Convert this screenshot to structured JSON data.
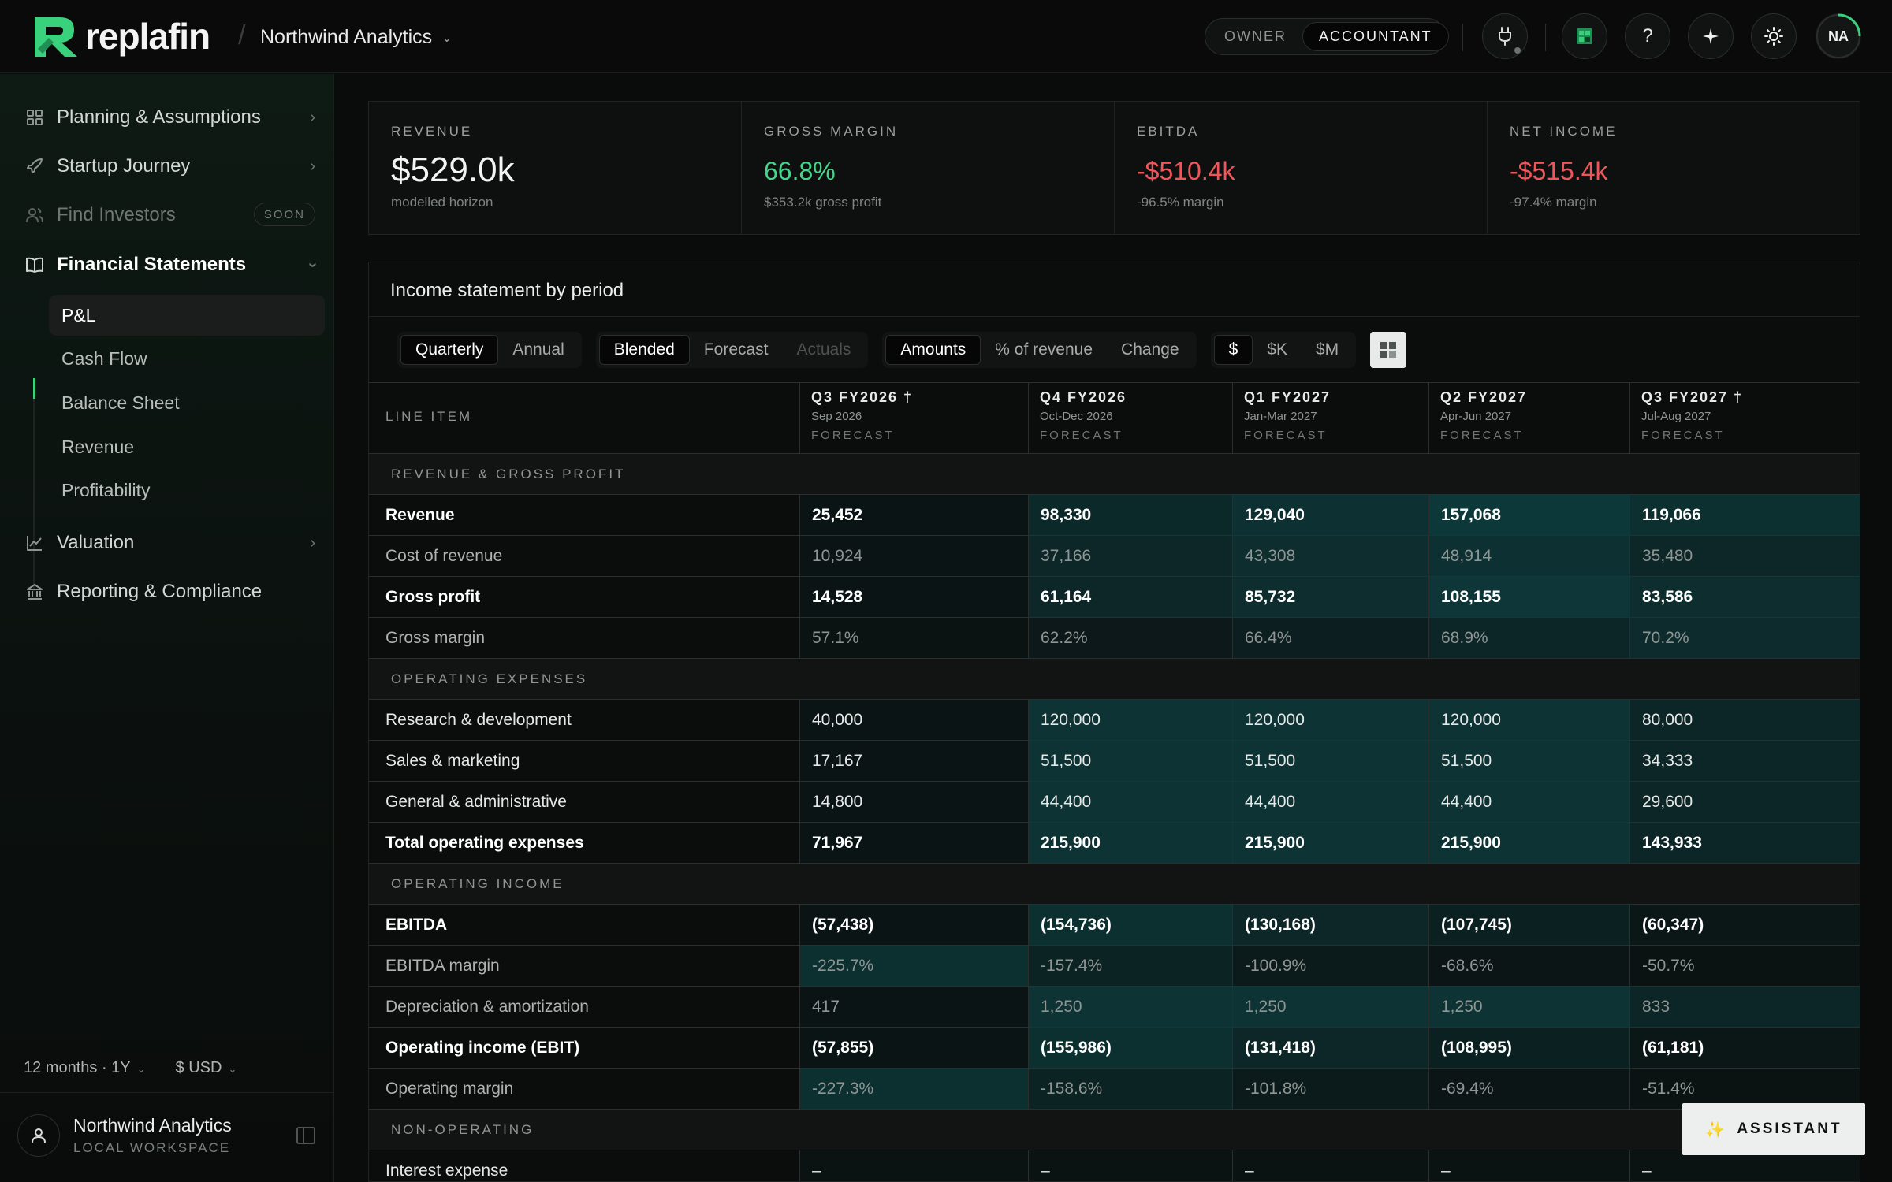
{
  "header": {
    "brand": "replafin",
    "org_name": "Northwind Analytics",
    "roles": [
      "OWNER",
      "ACCOUNTANT"
    ],
    "active_role": "ACCOUNTANT",
    "help_label": "?",
    "avatar_initials": "NA"
  },
  "sidebar": {
    "items": [
      {
        "label": "Planning & Assumptions",
        "icon": "grid-icon"
      },
      {
        "label": "Startup Journey",
        "icon": "rocket-icon"
      },
      {
        "label": "Find Investors",
        "icon": "users-icon",
        "badge": "SOON"
      },
      {
        "label": "Financial Statements",
        "icon": "book-icon"
      },
      {
        "label": "Valuation",
        "icon": "chart-line-icon"
      },
      {
        "label": "Reporting & Compliance",
        "icon": "bank-icon"
      }
    ],
    "sub_items": [
      "P&L",
      "Cash Flow",
      "Balance Sheet",
      "Revenue",
      "Profitability"
    ],
    "active_sub": "P&L",
    "horizon": "12 months · 1Y",
    "currency": "$ USD",
    "workspace_name": "Northwind Analytics",
    "workspace_sub": "LOCAL WORKSPACE"
  },
  "kpis": [
    {
      "label": "REVENUE",
      "value": "$529.0k",
      "sub": "modelled horizon",
      "tone": "neutral"
    },
    {
      "label": "GROSS MARGIN",
      "value": "66.8%",
      "sub": "$353.2k gross profit",
      "tone": "positive"
    },
    {
      "label": "EBITDA",
      "value": "-$510.4k",
      "sub": "-96.5% margin",
      "tone": "negative"
    },
    {
      "label": "NET INCOME",
      "value": "-$515.4k",
      "sub": "-97.4% margin",
      "tone": "negative"
    }
  ],
  "panel": {
    "title": "Income statement by period",
    "period_toggle": [
      "Quarterly",
      "Annual"
    ],
    "period_active": "Quarterly",
    "basis_toggle": [
      "Blended",
      "Forecast",
      "Actuals"
    ],
    "basis_active": "Blended",
    "view_toggle": [
      "Amounts",
      "% of revenue",
      "Change"
    ],
    "view_active": "Amounts",
    "unit_toggle": [
      "$",
      "$K",
      "$M"
    ],
    "unit_active": "$"
  },
  "table": {
    "line_item_header": "LINE ITEM",
    "columns": [
      {
        "period": "Q3 FY2026 †",
        "dates": "Sep 2026",
        "kind": "FORECAST"
      },
      {
        "period": "Q4 FY2026",
        "dates": "Oct-Dec 2026",
        "kind": "FORECAST"
      },
      {
        "period": "Q1 FY2027",
        "dates": "Jan-Mar 2027",
        "kind": "FORECAST"
      },
      {
        "period": "Q2 FY2027",
        "dates": "Apr-Jun 2027",
        "kind": "FORECAST"
      },
      {
        "period": "Q3 FY2027 †",
        "dates": "Jul-Aug 2027",
        "kind": "FORECAST"
      }
    ],
    "sections": [
      {
        "title": "REVENUE & GROSS PROFIT",
        "rows": [
          {
            "label": "Revenue",
            "style": "bold",
            "values": [
              "25,452",
              "98,330",
              "129,040",
              "157,068",
              "119,066"
            ],
            "heat": [
              0.05,
              0.55,
              0.75,
              0.9,
              0.7
            ]
          },
          {
            "label": "Cost of revenue",
            "style": "muted",
            "values": [
              "10,924",
              "37,166",
              "43,308",
              "48,914",
              "35,480"
            ],
            "heat": [
              0.05,
              0.5,
              0.65,
              0.75,
              0.5
            ]
          },
          {
            "label": "Gross profit",
            "style": "bold",
            "values": [
              "14,528",
              "61,164",
              "85,732",
              "108,155",
              "83,586"
            ],
            "heat": [
              0.05,
              0.5,
              0.65,
              0.85,
              0.65
            ]
          },
          {
            "label": "Gross margin",
            "style": "muted",
            "values": [
              "57.1%",
              "62.2%",
              "66.4%",
              "68.9%",
              "70.2%"
            ],
            "heat": [
              0.0,
              0.15,
              0.3,
              0.45,
              0.6
            ]
          }
        ]
      },
      {
        "title": "OPERATING EXPENSES",
        "rows": [
          {
            "label": "Research & development",
            "style": "normal",
            "values": [
              "40,000",
              "120,000",
              "120,000",
              "120,000",
              "80,000"
            ],
            "heat": [
              0.05,
              0.8,
              0.8,
              0.8,
              0.45
            ]
          },
          {
            "label": "Sales & marketing",
            "style": "normal",
            "values": [
              "17,167",
              "51,500",
              "51,500",
              "51,500",
              "34,333"
            ],
            "heat": [
              0.05,
              0.8,
              0.8,
              0.8,
              0.45
            ]
          },
          {
            "label": "General & administrative",
            "style": "normal",
            "values": [
              "14,800",
              "44,400",
              "44,400",
              "44,400",
              "29,600"
            ],
            "heat": [
              0.05,
              0.8,
              0.8,
              0.8,
              0.45
            ]
          },
          {
            "label": "Total operating expenses",
            "style": "bold",
            "values": [
              "71,967",
              "215,900",
              "215,900",
              "215,900",
              "143,933"
            ],
            "heat": [
              0.05,
              0.8,
              0.8,
              0.8,
              0.45
            ]
          }
        ]
      },
      {
        "title": "OPERATING INCOME",
        "rows": [
          {
            "label": "EBITDA",
            "style": "bold",
            "values": [
              "(57,438)",
              "(154,736)",
              "(130,168)",
              "(107,745)",
              "(60,347)"
            ],
            "heat": [
              0.05,
              0.7,
              0.5,
              0.35,
              0.1
            ]
          },
          {
            "label": "EBITDA margin",
            "style": "muted",
            "values": [
              "-225.7%",
              "-157.4%",
              "-100.9%",
              "-68.6%",
              "-50.7%"
            ],
            "heat": [
              0.7,
              0.4,
              0.2,
              0.08,
              0.02
            ]
          },
          {
            "label": "Depreciation & amortization",
            "style": "muted",
            "values": [
              "417",
              "1,250",
              "1,250",
              "1,250",
              "833"
            ],
            "heat": [
              0.05,
              0.8,
              0.8,
              0.8,
              0.45
            ]
          },
          {
            "label": "Operating income (EBIT)",
            "style": "bold",
            "values": [
              "(57,855)",
              "(155,986)",
              "(131,418)",
              "(108,995)",
              "(61,181)"
            ],
            "heat": [
              0.05,
              0.7,
              0.5,
              0.35,
              0.1
            ]
          },
          {
            "label": "Operating margin",
            "style": "muted",
            "values": [
              "-227.3%",
              "-158.6%",
              "-101.8%",
              "-69.4%",
              "-51.4%"
            ],
            "heat": [
              0.7,
              0.4,
              0.2,
              0.08,
              0.02
            ]
          }
        ]
      },
      {
        "title": "NON-OPERATING",
        "rows": [
          {
            "label": "Interest expense",
            "style": "normal",
            "values": [
              "–",
              "–",
              "–",
              "–",
              "–"
            ],
            "heat": [
              0,
              0,
              0,
              0,
              0
            ]
          }
        ]
      }
    ]
  },
  "assistant_label": "ASSISTANT",
  "colors": {
    "accent": "#3ad17c",
    "positive": "#45d48a",
    "negative": "#f0555a",
    "heat": "#10585b"
  }
}
